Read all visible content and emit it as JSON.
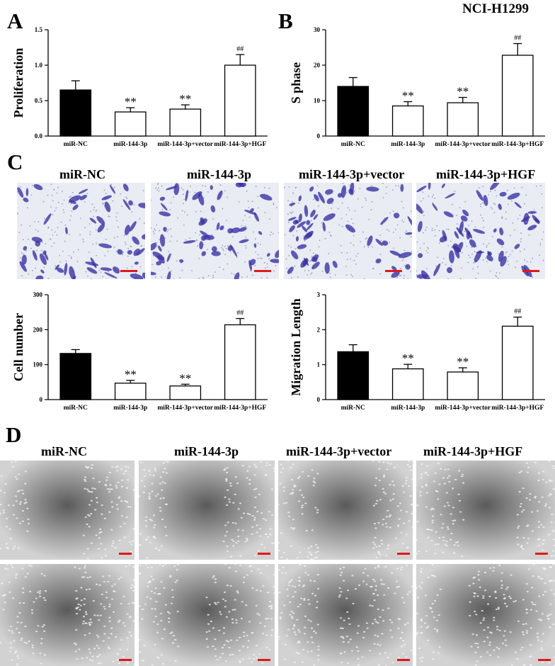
{
  "figure": {
    "cell_line": "NCI-H1299",
    "panels": {
      "a": "A",
      "b": "B",
      "c": "C",
      "d": "D"
    },
    "groups": [
      "miR-NC",
      "miR-144-3p",
      "miR-144-3p+vector",
      "miR-144-3p+HGF"
    ],
    "scale_bar_color": "#e01818",
    "transwell_stain_color": "#3b33a8",
    "wound_image_tone": "#8a8a8a"
  },
  "chart_data": [
    {
      "id": "proliferation",
      "type": "bar",
      "categories": [
        "miR-NC",
        "miR-144-3p",
        "miR-144-3p+vector",
        "miR-144-3p+HGF"
      ],
      "values": [
        0.65,
        0.34,
        0.38,
        1.0
      ],
      "errors": [
        0.13,
        0.06,
        0.06,
        0.15
      ],
      "bar_fills": [
        "#000000",
        "#ffffff",
        "#ffffff",
        "#ffffff"
      ],
      "annotations": [
        "",
        "**",
        "**",
        "##"
      ],
      "ylabel": "Proliferation",
      "ylim": [
        0,
        1.5
      ],
      "yticks": [
        "0.0",
        "0.5",
        "1.0",
        "1.5"
      ],
      "ytick_values": [
        0,
        0.5,
        1.0,
        1.5
      ]
    },
    {
      "id": "s-phase",
      "type": "bar",
      "categories": [
        "miR-NC",
        "miR-144-3p",
        "miR-144-3p+vector",
        "miR-144-3p+HGF"
      ],
      "values": [
        14,
        8.5,
        9.4,
        22.8
      ],
      "errors": [
        2.5,
        1.2,
        1.5,
        3.3
      ],
      "bar_fills": [
        "#000000",
        "#ffffff",
        "#ffffff",
        "#ffffff"
      ],
      "annotations": [
        "",
        "**",
        "**",
        "##"
      ],
      "ylabel": "S phase",
      "ylim": [
        0,
        30
      ],
      "yticks": [
        "0",
        "10",
        "20",
        "30"
      ],
      "ytick_values": [
        0,
        10,
        20,
        30
      ]
    },
    {
      "id": "cell-number",
      "type": "bar",
      "categories": [
        "miR-NC",
        "miR-144-3p",
        "miR-144-3p+vector",
        "miR-144-3p+HGF"
      ],
      "values": [
        132,
        47,
        39,
        214
      ],
      "errors": [
        11,
        8,
        5,
        18
      ],
      "bar_fills": [
        "#000000",
        "#ffffff",
        "#ffffff",
        "#ffffff"
      ],
      "annotations": [
        "",
        "**",
        "**",
        "##"
      ],
      "ylabel": "Cell number",
      "ylim": [
        0,
        300
      ],
      "yticks": [
        "0",
        "100",
        "200",
        "300"
      ],
      "ytick_values": [
        0,
        100,
        200,
        300
      ]
    },
    {
      "id": "migration-length",
      "type": "bar",
      "categories": [
        "miR-NC",
        "miR-144-3p",
        "miR-144-3p+vector",
        "miR-144-3p+HGF"
      ],
      "values": [
        1.37,
        0.88,
        0.79,
        2.1
      ],
      "errors": [
        0.2,
        0.13,
        0.12,
        0.26
      ],
      "bar_fills": [
        "#000000",
        "#ffffff",
        "#ffffff",
        "#ffffff"
      ],
      "annotations": [
        "",
        "**",
        "**",
        "##"
      ],
      "ylabel": "Migration Length",
      "ylim": [
        0,
        3
      ],
      "yticks": [
        "0",
        "1",
        "2",
        "3"
      ],
      "ytick_values": [
        0,
        1,
        2,
        3
      ]
    }
  ]
}
